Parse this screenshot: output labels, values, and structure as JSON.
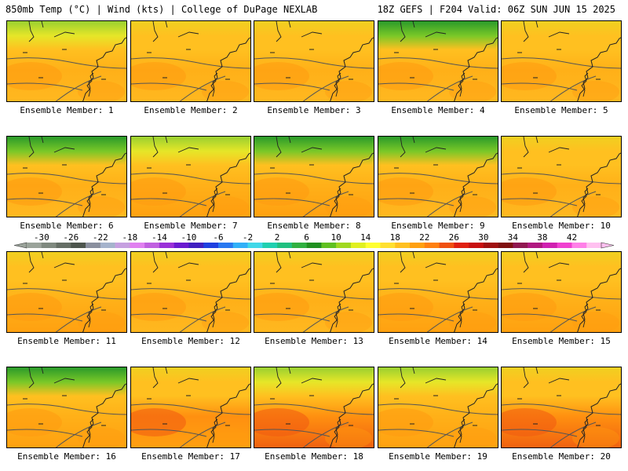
{
  "header": {
    "left_title": "850mb Temp (°C) | Wind (kts) | College of DuPage NEXLAB",
    "right_title": "18Z GEFS | F204 Valid: 06Z SUN JUN 15 2025"
  },
  "member_label_prefix": "Ensemble Member:",
  "members": [
    {
      "number": "1",
      "label": "Ensemble Member: 1"
    },
    {
      "number": "2",
      "label": "Ensemble Member: 2"
    },
    {
      "number": "3",
      "label": "Ensemble Member: 3"
    },
    {
      "number": "4",
      "label": "Ensemble Member: 4"
    },
    {
      "number": "5",
      "label": "Ensemble Member: 5"
    },
    {
      "number": "6",
      "label": "Ensemble Member: 6"
    },
    {
      "number": "7",
      "label": "Ensemble Member: 7"
    },
    {
      "number": "8",
      "label": "Ensemble Member: 8"
    },
    {
      "number": "9",
      "label": "Ensemble Member: 9"
    },
    {
      "number": "10",
      "label": "Ensemble Member: 10"
    },
    {
      "number": "11",
      "label": "Ensemble Member: 11"
    },
    {
      "number": "12",
      "label": "Ensemble Member: 12"
    },
    {
      "number": "13",
      "label": "Ensemble Member: 13"
    },
    {
      "number": "14",
      "label": "Ensemble Member: 14"
    },
    {
      "number": "15",
      "label": "Ensemble Member: 15"
    },
    {
      "number": "16",
      "label": "Ensemble Member: 16"
    },
    {
      "number": "17",
      "label": "Ensemble Member: 17"
    },
    {
      "number": "18",
      "label": "Ensemble Member: 18"
    },
    {
      "number": "19",
      "label": "Ensemble Member: 19"
    },
    {
      "number": "20",
      "label": "Ensemble Member: 20"
    }
  ],
  "colorbar": {
    "labels": [
      "-30",
      "-26",
      "-22",
      "-18",
      "-14",
      "-10",
      "-6",
      "-2",
      "2",
      "6",
      "10",
      "14",
      "18",
      "22",
      "26",
      "30",
      "34",
      "38",
      "42"
    ],
    "colors": [
      "#9aa39a",
      "#7f897f",
      "#656e65",
      "#4d554d",
      "#8a8f9e",
      "#a5b3cc",
      "#c6a0e0",
      "#e080f0",
      "#c060e0",
      "#9a30d8",
      "#6a1ad0",
      "#4020c0",
      "#1e40e0",
      "#2878f0",
      "#30b0f8",
      "#40d8e8",
      "#20d0b0",
      "#20c080",
      "#30b040",
      "#209020",
      "#60c020",
      "#a0d820",
      "#e0f020",
      "#ffff30",
      "#ffe030",
      "#ffc020",
      "#ffa010",
      "#ff8010",
      "#f05010",
      "#e02010",
      "#c81010",
      "#a01010",
      "#801010",
      "#901850",
      "#b01880",
      "#d020b0",
      "#f040d0",
      "#ff80e8",
      "#ffc0f0"
    ],
    "start_value": -32,
    "step_value": 2
  }
}
